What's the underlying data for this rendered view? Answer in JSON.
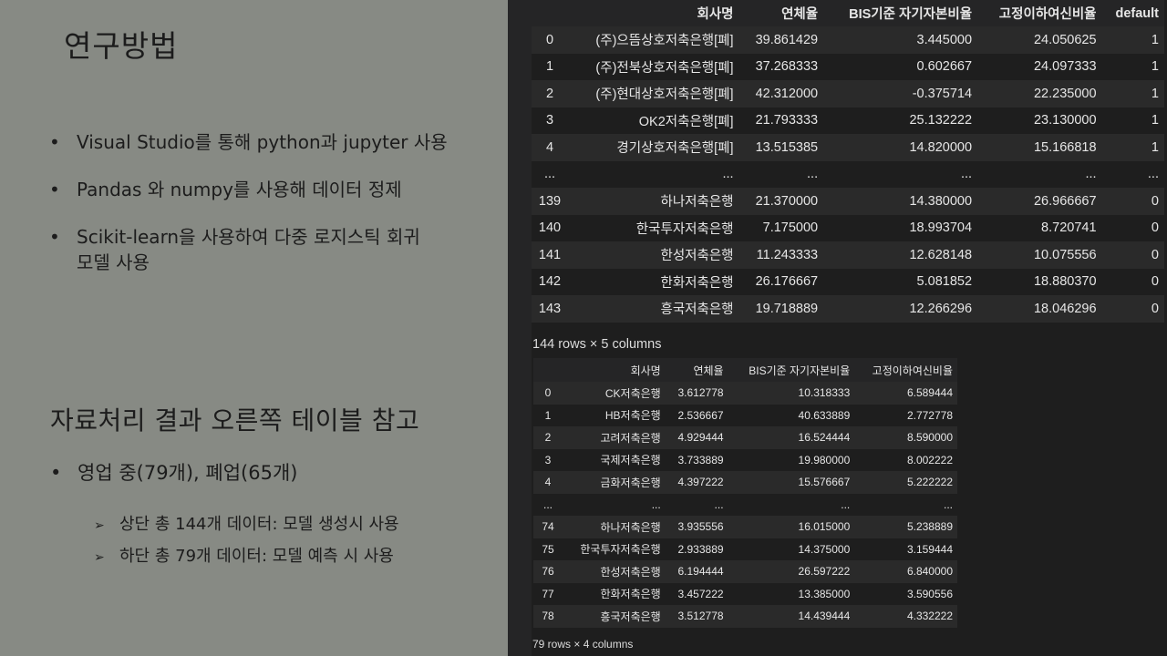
{
  "slide": {
    "title": "연구방법",
    "bullets": [
      "Visual Studio를 통해 python과 jupyter 사용",
      "Pandas 와 numpy를 사용해 데이터 정제",
      "Scikit-learn을 사용하여 다중 로지스틱 회귀 모델 사용"
    ],
    "bullet_glyph": "•",
    "subtitle": "자료처리 결과 오른쪽 테이블 참고",
    "result": "영업 중(79개), 폐업(65개)",
    "arrow_glyph": "➢",
    "sub_items": [
      "상단 총 144개 데이터: 모델 생성시 사용",
      "하단 총 79개 데이터: 모델 예측 시 사용"
    ]
  },
  "table1": {
    "columns": [
      "",
      "회사명",
      "연체율",
      "BIS기준 자기자본비율",
      "고정이하여신비율",
      "default"
    ],
    "rows": [
      [
        "0",
        "(주)으뜸상호저축은행[폐]",
        "39.861429",
        "3.445000",
        "24.050625",
        "1"
      ],
      [
        "1",
        "(주)전북상호저축은행[폐]",
        "37.268333",
        "0.602667",
        "24.097333",
        "1"
      ],
      [
        "2",
        "(주)현대상호저축은행[폐]",
        "42.312000",
        "-0.375714",
        "22.235000",
        "1"
      ],
      [
        "3",
        "OK2저축은행[폐]",
        "21.793333",
        "25.132222",
        "23.130000",
        "1"
      ],
      [
        "4",
        "경기상호저축은행[폐]",
        "13.515385",
        "14.820000",
        "15.166818",
        "1"
      ],
      [
        "...",
        "...",
        "...",
        "...",
        "...",
        "..."
      ],
      [
        "139",
        "하나저축은행",
        "21.370000",
        "14.380000",
        "26.966667",
        "0"
      ],
      [
        "140",
        "한국투자저축은행",
        "7.175000",
        "18.993704",
        "8.720741",
        "0"
      ],
      [
        "141",
        "한성저축은행",
        "11.243333",
        "12.628148",
        "10.075556",
        "0"
      ],
      [
        "142",
        "한화저축은행",
        "26.176667",
        "5.081852",
        "18.880370",
        "0"
      ],
      [
        "143",
        "흥국저축은행",
        "19.718889",
        "12.266296",
        "18.046296",
        "0"
      ]
    ],
    "caption": "144 rows × 5 columns"
  },
  "table2": {
    "columns": [
      "",
      "회사명",
      "연체율",
      "BIS기준 자기자본비율",
      "고정이하여신비율"
    ],
    "rows": [
      [
        "0",
        "CK저축은행",
        "3.612778",
        "10.318333",
        "6.589444"
      ],
      [
        "1",
        "HB저축은행",
        "2.536667",
        "40.633889",
        "2.772778"
      ],
      [
        "2",
        "고려저축은행",
        "4.929444",
        "16.524444",
        "8.590000"
      ],
      [
        "3",
        "국제저축은행",
        "3.733889",
        "19.980000",
        "8.002222"
      ],
      [
        "4",
        "금화저축은행",
        "4.397222",
        "15.576667",
        "5.222222"
      ],
      [
        "...",
        "...",
        "...",
        "...",
        "..."
      ],
      [
        "74",
        "하나저축은행",
        "3.935556",
        "16.015000",
        "5.238889"
      ],
      [
        "75",
        "한국투자저축은행",
        "2.933889",
        "14.375000",
        "3.159444"
      ],
      [
        "76",
        "한성저축은행",
        "6.194444",
        "26.597222",
        "6.840000"
      ],
      [
        "77",
        "한화저축은행",
        "3.457222",
        "13.385000",
        "3.590556"
      ],
      [
        "78",
        "흥국저축은행",
        "3.512778",
        "14.439444",
        "4.332222"
      ]
    ],
    "caption": "79 rows × 4 columns"
  }
}
